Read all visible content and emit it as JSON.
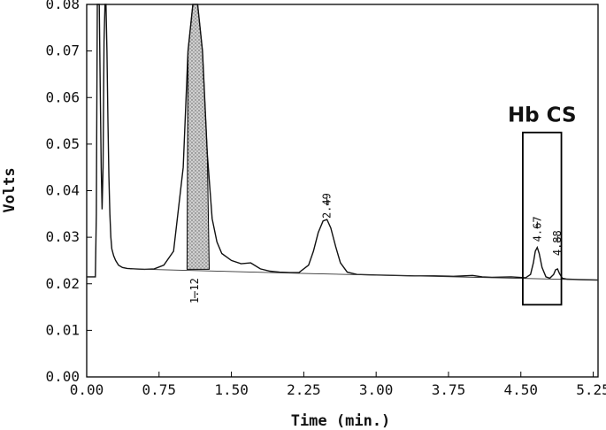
{
  "chart_data": {
    "type": "line",
    "title": "",
    "xlabel": "Time (min.)",
    "ylabel": "Volts",
    "xlim": [
      0,
      5.3
    ],
    "ylim": [
      0,
      0.08
    ],
    "grid": false,
    "x_ticks": [
      0.0,
      0.75,
      1.5,
      2.25,
      3.0,
      3.75,
      4.5,
      5.25
    ],
    "x_tick_labels": [
      "0.00",
      "0.75",
      "1.50",
      "2.25",
      "3.00",
      "3.75",
      "4.50",
      "5.25"
    ],
    "y_ticks": [
      0.0,
      0.01,
      0.02,
      0.03,
      0.04,
      0.05,
      0.06,
      0.07,
      0.08
    ],
    "y_tick_labels": [
      "0.00",
      "0.01",
      "0.02",
      "0.03",
      "0.04",
      "0.05",
      "0.06",
      "0.07",
      "0.08"
    ],
    "series": [
      {
        "x": [
          0.0,
          0.05,
          0.09,
          0.1,
          0.11,
          0.12,
          0.13,
          0.14,
          0.15,
          0.16,
          0.17,
          0.18,
          0.19,
          0.2,
          0.21,
          0.22,
          0.23,
          0.24,
          0.25,
          0.26,
          0.28,
          0.3,
          0.33,
          0.37,
          0.42,
          0.5,
          0.6,
          0.7,
          0.8,
          0.9,
          1.0,
          1.05,
          1.1,
          1.15,
          1.2,
          1.25,
          1.3,
          1.35,
          1.4,
          1.5,
          1.6,
          1.7,
          1.8,
          1.9,
          2.0,
          2.1,
          2.2,
          2.3,
          2.35,
          2.4,
          2.45,
          2.49,
          2.53,
          2.58,
          2.63,
          2.7,
          2.8,
          3.0,
          3.2,
          3.4,
          3.6,
          3.8,
          4.0,
          4.1,
          4.2,
          4.4,
          4.55,
          4.6,
          4.63,
          4.65,
          4.67,
          4.69,
          4.72,
          4.76,
          4.8,
          4.84,
          4.86,
          4.88,
          4.9,
          4.93,
          4.98,
          5.1,
          5.3
        ],
        "y": [
          0.0215,
          0.0215,
          0.0215,
          0.035,
          0.082,
          0.083,
          0.082,
          0.062,
          0.045,
          0.036,
          0.045,
          0.072,
          0.0825,
          0.0825,
          0.07,
          0.055,
          0.043,
          0.035,
          0.03,
          0.0275,
          0.026,
          0.025,
          0.024,
          0.0235,
          0.0233,
          0.0232,
          0.0231,
          0.0232,
          0.024,
          0.027,
          0.045,
          0.07,
          0.083,
          0.083,
          0.07,
          0.048,
          0.034,
          0.029,
          0.0265,
          0.025,
          0.0243,
          0.0245,
          0.0232,
          0.0227,
          0.0225,
          0.0224,
          0.0224,
          0.024,
          0.027,
          0.031,
          0.0335,
          0.0338,
          0.032,
          0.028,
          0.0245,
          0.0225,
          0.022,
          0.0219,
          0.0218,
          0.0217,
          0.0217,
          0.0216,
          0.0218,
          0.0215,
          0.0214,
          0.0215,
          0.0213,
          0.022,
          0.0245,
          0.027,
          0.0278,
          0.0265,
          0.0235,
          0.0215,
          0.0212,
          0.022,
          0.023,
          0.0232,
          0.0222,
          0.0212,
          0.021,
          0.0209,
          0.0208
        ]
      }
    ],
    "shaded_region": {
      "x_start": 1.04,
      "x_end": 1.27
    },
    "peak_labels": [
      {
        "x": 1.12,
        "label": "1.12"
      },
      {
        "x": 2.49,
        "label": "2.49"
      },
      {
        "x": 4.67,
        "label": "4.67"
      },
      {
        "x": 4.88,
        "label": "4.88"
      }
    ],
    "box_annotation": {
      "label": "Hb CS",
      "x_start": 4.52,
      "x_end": 4.92,
      "y_start": 0.0155,
      "y_end": 0.0525
    }
  }
}
